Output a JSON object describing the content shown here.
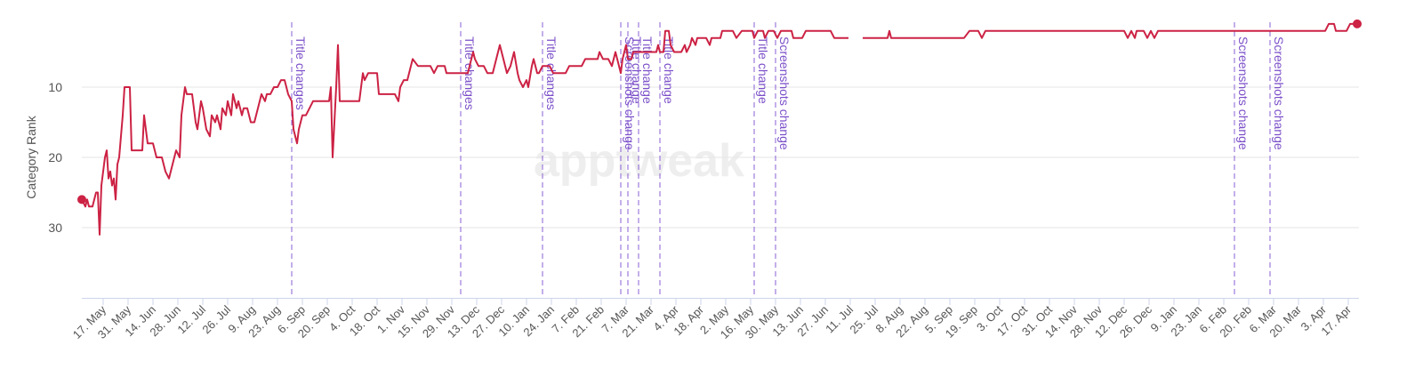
{
  "chart_data": {
    "type": "line",
    "y_label": "Category Rank",
    "watermark": "apptweak",
    "color": "#cc2244",
    "grid": true,
    "xlim": [
      -12,
      706
    ],
    "ylim": [
      40,
      0
    ],
    "yticks": [
      10,
      20,
      30
    ],
    "xticks": [
      {
        "value": 0,
        "label": "17. May"
      },
      {
        "value": 14,
        "label": "31. May"
      },
      {
        "value": 28,
        "label": "14. Jun"
      },
      {
        "value": 42,
        "label": "28. Jun"
      },
      {
        "value": 56,
        "label": "12. Jul"
      },
      {
        "value": 70,
        "label": "26. Jul"
      },
      {
        "value": 84,
        "label": "9. Aug"
      },
      {
        "value": 98,
        "label": "23. Aug"
      },
      {
        "value": 112,
        "label": "6. Sep"
      },
      {
        "value": 126,
        "label": "20. Sep"
      },
      {
        "value": 140,
        "label": "4. Oct"
      },
      {
        "value": 154,
        "label": "18. Oct"
      },
      {
        "value": 168,
        "label": "1. Nov"
      },
      {
        "value": 182,
        "label": "15. Nov"
      },
      {
        "value": 196,
        "label": "29. Nov"
      },
      {
        "value": 210,
        "label": "13. Dec"
      },
      {
        "value": 224,
        "label": "27. Dec"
      },
      {
        "value": 238,
        "label": "10. Jan"
      },
      {
        "value": 252,
        "label": "24. Jan"
      },
      {
        "value": 266,
        "label": "7. Feb"
      },
      {
        "value": 280,
        "label": "21. Feb"
      },
      {
        "value": 294,
        "label": "7. Mar"
      },
      {
        "value": 308,
        "label": "21. Mar"
      },
      {
        "value": 322,
        "label": "4. Apr"
      },
      {
        "value": 336,
        "label": "18. Apr"
      },
      {
        "value": 350,
        "label": "2. May"
      },
      {
        "value": 364,
        "label": "16. May"
      },
      {
        "value": 378,
        "label": "30. May"
      },
      {
        "value": 392,
        "label": "13. Jun"
      },
      {
        "value": 406,
        "label": "27. Jun"
      },
      {
        "value": 420,
        "label": "11. Jul"
      },
      {
        "value": 434,
        "label": "25. Jul"
      },
      {
        "value": 448,
        "label": "8. Aug"
      },
      {
        "value": 462,
        "label": "22. Aug"
      },
      {
        "value": 476,
        "label": "5. Sep"
      },
      {
        "value": 490,
        "label": "19. Sep"
      },
      {
        "value": 504,
        "label": "3. Oct"
      },
      {
        "value": 518,
        "label": "17. Oct"
      },
      {
        "value": 532,
        "label": "31. Oct"
      },
      {
        "value": 546,
        "label": "14. Nov"
      },
      {
        "value": 560,
        "label": "28. Nov"
      },
      {
        "value": 574,
        "label": "12. Dec"
      },
      {
        "value": 588,
        "label": "26. Dec"
      },
      {
        "value": 602,
        "label": "9. Jan"
      },
      {
        "value": 616,
        "label": "23. Jan"
      },
      {
        "value": 630,
        "label": "6. Feb"
      },
      {
        "value": 644,
        "label": "20. Feb"
      },
      {
        "value": 658,
        "label": "6. Mar"
      },
      {
        "value": 672,
        "label": "20. Mar"
      },
      {
        "value": 686,
        "label": "3. Apr"
      },
      {
        "value": 700,
        "label": "17. Apr"
      }
    ],
    "annotations": [
      {
        "x": 106,
        "label": "Title changes"
      },
      {
        "x": 201,
        "label": "Title changes"
      },
      {
        "x": 247,
        "label": "Title changes"
      },
      {
        "x": 291,
        "label": "Screenshots change"
      },
      {
        "x": 295,
        "label": "Title change"
      },
      {
        "x": 301,
        "label": "Title change"
      },
      {
        "x": 313,
        "label": "Title change"
      },
      {
        "x": 366,
        "label": "Title change"
      },
      {
        "x": 378,
        "label": "Screenshots change"
      },
      {
        "x": 636,
        "label": "Screenshots change"
      },
      {
        "x": 656,
        "label": "Screenshots change"
      }
    ],
    "x": [
      -12,
      -10,
      -9,
      -8,
      -6,
      -4,
      -3,
      -2,
      -1,
      1,
      2,
      3,
      4,
      5,
      6,
      7,
      8,
      9,
      11,
      12,
      15,
      16,
      22,
      23,
      25,
      28,
      30,
      33,
      35,
      37,
      39,
      41,
      43,
      44,
      46,
      47,
      50,
      52,
      53,
      55,
      56,
      58,
      60,
      61,
      63,
      64,
      66,
      67,
      69,
      70,
      72,
      73,
      75,
      76,
      78,
      79,
      81,
      83,
      85,
      87,
      89,
      91,
      92,
      94,
      96,
      98,
      100,
      102,
      104,
      106,
      107,
      109,
      110,
      112,
      114,
      116,
      118,
      122,
      125,
      127,
      128,
      129,
      131,
      132,
      133,
      135,
      139,
      144,
      146,
      147,
      149,
      154,
      155,
      164,
      166,
      167,
      169,
      171,
      173,
      174,
      177,
      184,
      186,
      188,
      192,
      193,
      197,
      201,
      203,
      205,
      206,
      208,
      209,
      211,
      214,
      216,
      219,
      221,
      223,
      225,
      227,
      229,
      231,
      233,
      234,
      236,
      238,
      239,
      241,
      242,
      244,
      245,
      247,
      249,
      251,
      253,
      255,
      260,
      262,
      264,
      269,
      271,
      278,
      279,
      281,
      284,
      286,
      287,
      288,
      290,
      291,
      292,
      293,
      294,
      295,
      297,
      298,
      300,
      302,
      304,
      307,
      309,
      311,
      312,
      313,
      315,
      316,
      318,
      319,
      321,
      324,
      325,
      327,
      328,
      330,
      331,
      333,
      334,
      339,
      341,
      342,
      347,
      348,
      354,
      356,
      359,
      365,
      366,
      368,
      371,
      372,
      374,
      377,
      379,
      381,
      387,
      388,
      393,
      395,
      409,
      411,
      419,
      423,
      427,
      441,
      442,
      443,
      482,
      484,
      487,
      492,
      494,
      496,
      574,
      576,
      578,
      580,
      581,
      585,
      587,
      589,
      591,
      593,
      687,
      689,
      692,
      693,
      699,
      701,
      705
    ],
    "values": [
      26,
      27,
      26,
      27,
      27,
      25,
      25,
      31,
      24,
      20,
      19,
      23,
      22,
      24,
      23,
      26,
      21,
      20,
      14,
      10,
      10,
      19,
      19,
      14,
      18,
      18,
      20,
      20,
      22,
      23,
      21,
      19,
      20,
      14,
      10,
      11,
      11,
      15,
      16,
      12,
      13,
      16,
      17,
      14,
      15,
      14,
      16,
      13,
      14,
      12,
      14,
      11,
      13,
      12,
      14,
      13,
      13,
      15,
      15,
      13,
      11,
      12,
      11,
      11,
      10,
      10,
      9,
      9,
      11,
      12,
      16,
      18,
      16,
      14,
      14,
      13,
      12,
      12,
      12,
      12,
      10,
      20,
      10,
      4,
      12,
      12,
      12,
      12,
      8,
      9,
      8,
      8,
      11,
      11,
      12,
      10,
      9,
      9,
      7,
      6,
      7,
      7,
      8,
      7,
      7,
      8,
      8,
      8,
      8,
      8,
      7,
      5,
      6,
      7,
      7,
      8,
      8,
      6,
      4,
      6,
      8,
      7,
      5,
      8,
      9,
      10,
      9,
      10,
      7,
      6,
      8,
      8,
      7,
      7,
      7,
      8,
      8,
      8,
      7,
      7,
      7,
      6,
      6,
      5,
      6,
      6,
      7,
      6,
      5,
      7,
      8,
      6,
      5,
      4,
      6,
      6,
      5,
      5,
      5,
      5,
      5,
      5,
      5,
      4,
      5,
      5,
      2,
      2,
      4,
      5,
      5,
      5,
      4,
      5,
      4,
      3,
      4,
      3,
      3,
      4,
      3,
      3,
      2,
      2,
      3,
      2,
      2,
      3,
      2,
      2,
      3,
      2,
      2,
      3,
      2,
      2,
      3,
      3,
      2,
      2,
      3,
      3,
      null,
      3,
      3,
      2,
      3,
      3,
      3,
      2,
      2,
      3,
      2,
      2,
      3,
      2,
      3,
      2,
      2,
      3,
      2,
      3,
      2,
      2,
      1,
      1,
      2,
      2,
      1,
      1
    ]
  }
}
